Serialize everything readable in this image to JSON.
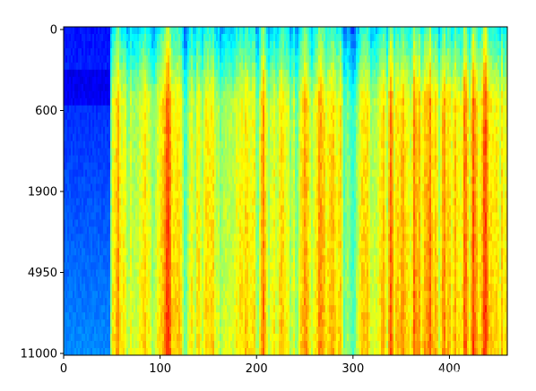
{
  "chart_data": {
    "type": "heatmap",
    "colormap": "jet",
    "title": "",
    "xlabel": "",
    "ylabel": "",
    "x_range": [
      0,
      460
    ],
    "x_ticks": [
      "0",
      "100",
      "200",
      "300",
      "400"
    ],
    "y_tick_labels": [
      "0",
      "600",
      "1900",
      "4950",
      "11000"
    ],
    "y_axis_inverted": true,
    "colorbar": false,
    "value_range": [
      0,
      1
    ],
    "description_of_values": {
      "columns_0_to_48": "low values (blue), darker blue near top rows",
      "columns_48_to_460": "mid-to-high values (cyan, green, yellow) with vertical red streaks, bluer band in the top rows"
    }
  },
  "watermark": {
    "text": "CSDN @难得北窗高卧"
  }
}
